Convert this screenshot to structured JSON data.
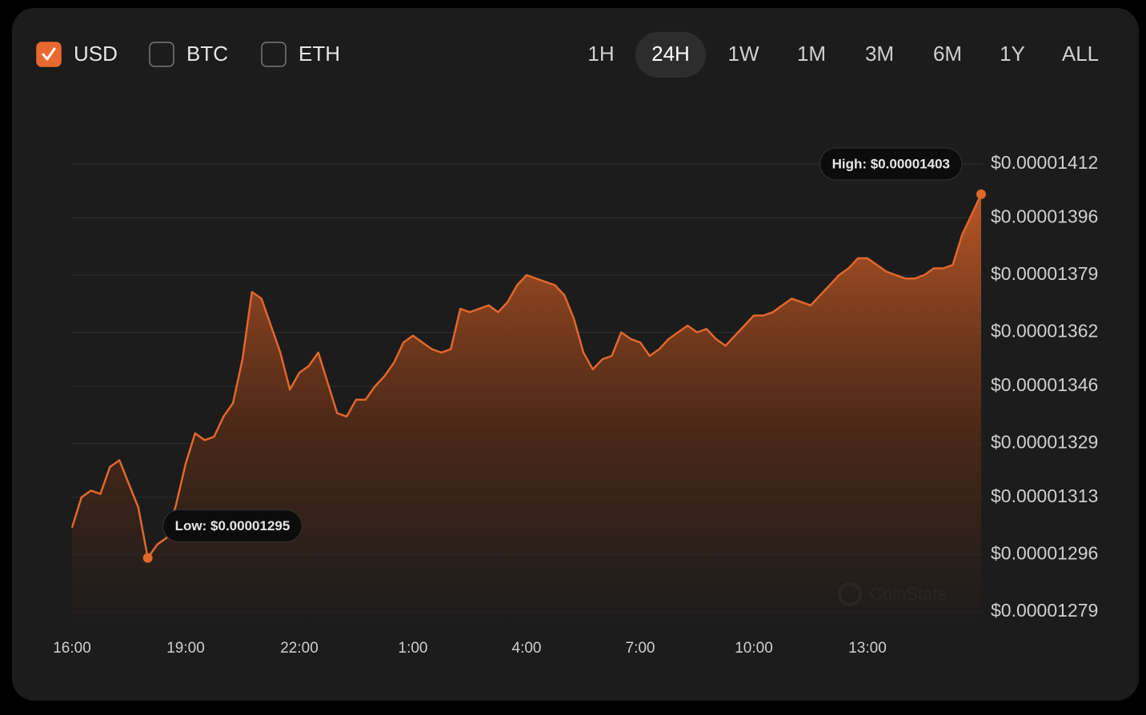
{
  "controls": {
    "currencies": [
      {
        "label": "USD",
        "checked": true
      },
      {
        "label": "BTC",
        "checked": false
      },
      {
        "label": "ETH",
        "checked": false
      }
    ],
    "ranges": [
      {
        "label": "1H",
        "selected": false
      },
      {
        "label": "24H",
        "selected": true
      },
      {
        "label": "1W",
        "selected": false
      },
      {
        "label": "1M",
        "selected": false
      },
      {
        "label": "3M",
        "selected": false
      },
      {
        "label": "6M",
        "selected": false
      },
      {
        "label": "1Y",
        "selected": false
      },
      {
        "label": "ALL",
        "selected": false
      }
    ]
  },
  "watermark": "CoinStats",
  "chart_data": {
    "type": "area",
    "color": "#e0672e",
    "grid": true,
    "categories": [
      "16:00",
      null,
      null,
      null,
      null,
      null,
      null,
      null,
      null,
      null,
      null,
      null,
      "19:00",
      null,
      null,
      null,
      null,
      null,
      null,
      null,
      null,
      null,
      null,
      null,
      "22:00",
      null,
      null,
      null,
      null,
      null,
      null,
      null,
      null,
      null,
      null,
      null,
      "1:00",
      null,
      null,
      null,
      null,
      null,
      null,
      null,
      null,
      null,
      null,
      null,
      "4:00",
      null,
      null,
      null,
      null,
      null,
      null,
      null,
      null,
      null,
      null,
      null,
      "7:00",
      null,
      null,
      null,
      null,
      null,
      null,
      null,
      null,
      null,
      null,
      null,
      "10:00",
      null,
      null,
      null,
      null,
      null,
      null,
      null,
      null,
      null,
      null,
      null,
      "13:00",
      null,
      null,
      null,
      null,
      null,
      null,
      null,
      null,
      null,
      null,
      null,
      null
    ],
    "values": [
      1.304e-05,
      1.313e-05,
      1.315e-05,
      1.314e-05,
      1.322e-05,
      1.324e-05,
      1.317e-05,
      1.31e-05,
      1.295e-05,
      1.299e-05,
      1.301e-05,
      1.311e-05,
      1.323e-05,
      1.332e-05,
      1.33e-05,
      1.331e-05,
      1.337e-05,
      1.341e-05,
      1.354e-05,
      1.374e-05,
      1.372e-05,
      1.364e-05,
      1.356e-05,
      1.345e-05,
      1.35e-05,
      1.352e-05,
      1.356e-05,
      1.347e-05,
      1.338e-05,
      1.337e-05,
      1.342e-05,
      1.342e-05,
      1.346e-05,
      1.349e-05,
      1.353e-05,
      1.359e-05,
      1.361e-05,
      1.359e-05,
      1.357e-05,
      1.356e-05,
      1.357e-05,
      1.369e-05,
      1.368e-05,
      1.369e-05,
      1.37e-05,
      1.368e-05,
      1.371e-05,
      1.376e-05,
      1.379e-05,
      1.378e-05,
      1.377e-05,
      1.376e-05,
      1.373e-05,
      1.366e-05,
      1.356e-05,
      1.351e-05,
      1.354e-05,
      1.355e-05,
      1.362e-05,
      1.36e-05,
      1.359e-05,
      1.355e-05,
      1.357e-05,
      1.36e-05,
      1.362e-05,
      1.364e-05,
      1.362e-05,
      1.363e-05,
      1.36e-05,
      1.358e-05,
      1.361e-05,
      1.364e-05,
      1.367e-05,
      1.367e-05,
      1.368e-05,
      1.37e-05,
      1.372e-05,
      1.371e-05,
      1.37e-05,
      1.373e-05,
      1.376e-05,
      1.379e-05,
      1.381e-05,
      1.384e-05,
      1.384e-05,
      1.382e-05,
      1.38e-05,
      1.379e-05,
      1.378e-05,
      1.378e-05,
      1.379e-05,
      1.381e-05,
      1.381e-05,
      1.382e-05,
      1.391e-05,
      1.397e-05,
      1.403e-05
    ],
    "ylim": [
      1.279e-05,
      1.412e-05
    ],
    "yticks": [
      {
        "value": 1.279e-05,
        "label": "$0.00001279"
      },
      {
        "value": 1.296e-05,
        "label": "$0.00001296"
      },
      {
        "value": 1.313e-05,
        "label": "$0.00001313"
      },
      {
        "value": 1.329e-05,
        "label": "$0.00001329"
      },
      {
        "value": 1.346e-05,
        "label": "$0.00001346"
      },
      {
        "value": 1.362e-05,
        "label": "$0.00001362"
      },
      {
        "value": 1.379e-05,
        "label": "$0.00001379"
      },
      {
        "value": 1.396e-05,
        "label": "$0.00001396"
      },
      {
        "value": 1.412e-05,
        "label": "$0.00001412"
      }
    ],
    "annotations": [
      {
        "text": "High: $0.00001403"
      },
      {
        "text": "Low: $0.00001295"
      }
    ]
  }
}
